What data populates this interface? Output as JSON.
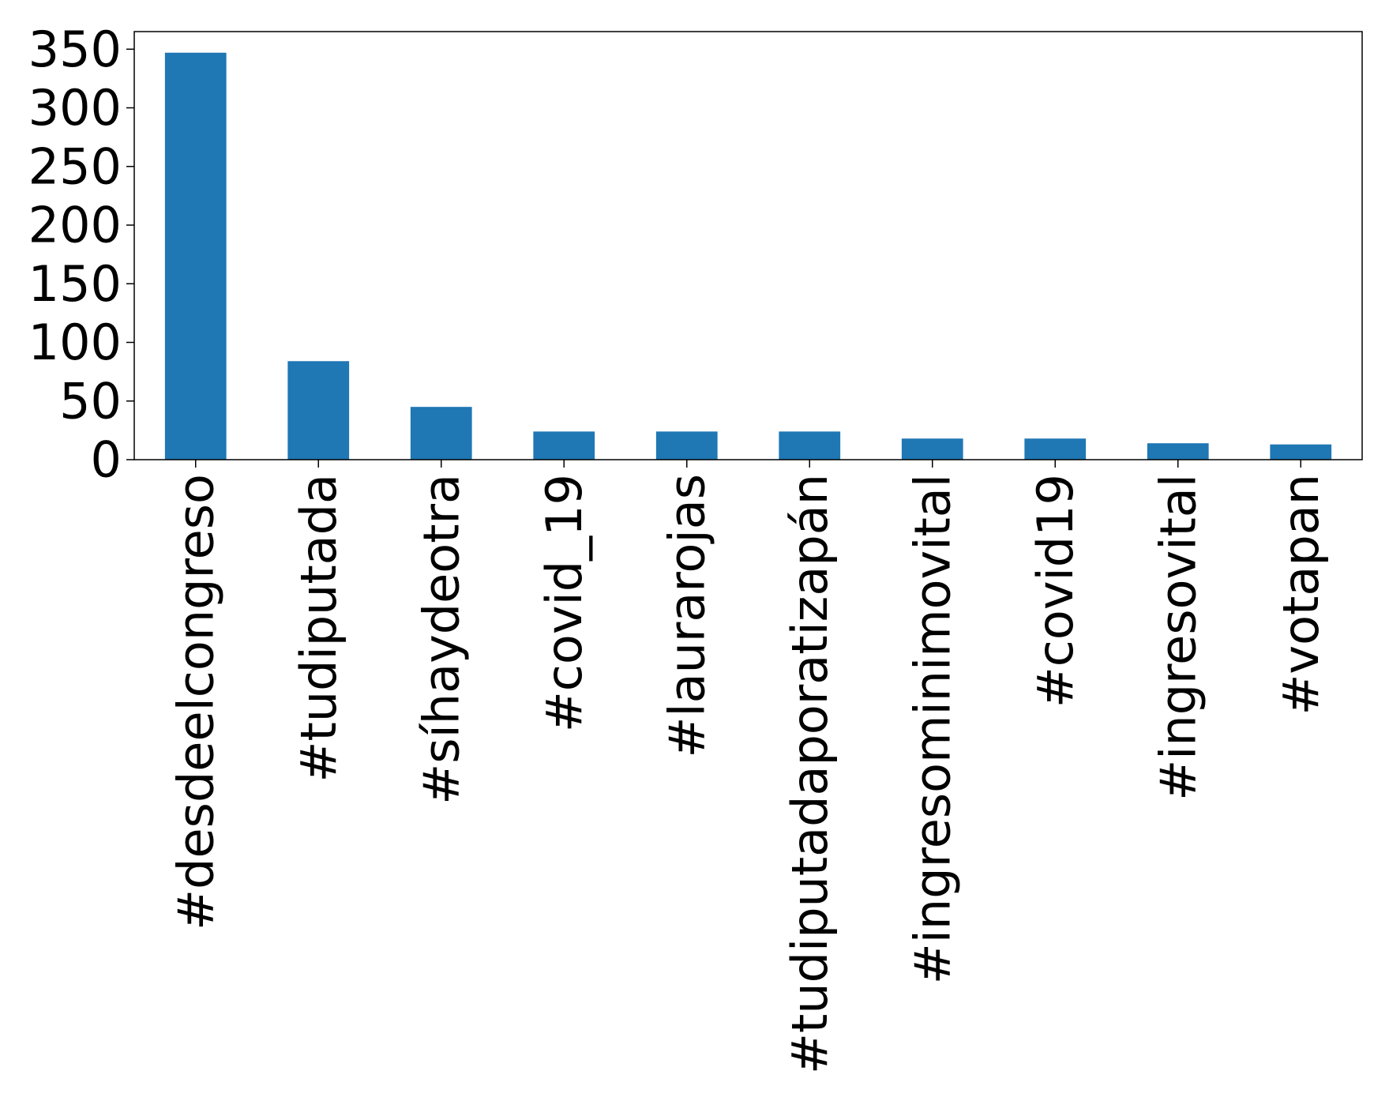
{
  "chart_data": {
    "type": "bar",
    "title": "",
    "xlabel": "",
    "ylabel": "",
    "categories": [
      "#desdeelcongreso",
      "#tudiputada",
      "#síhaydeotra",
      "#covid_19",
      "#laurarojas",
      "#tudiputadaporatizapán",
      "#ingresominimovital",
      "#covid19",
      "#ingresovital",
      "#votapan"
    ],
    "values": [
      347,
      84,
      45,
      24,
      24,
      24,
      18,
      18,
      14,
      13
    ],
    "ylim": [
      0,
      365
    ],
    "yticks": [
      0,
      50,
      100,
      150,
      200,
      250,
      300,
      350
    ],
    "grid": false,
    "legend": "none",
    "bar_color": "#1f77b4"
  }
}
